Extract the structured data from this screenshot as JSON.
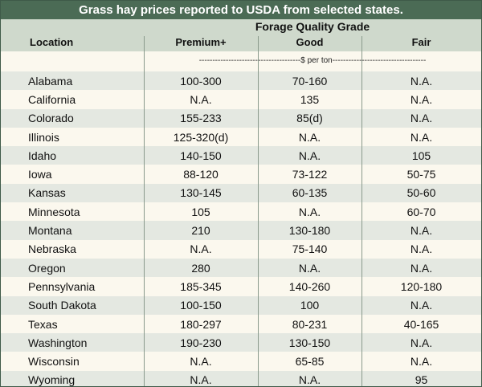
{
  "title": "Grass hay prices reported to USDA from selected states.",
  "group_header": "Forage Quality Grade",
  "columns": {
    "location": "Location",
    "premium": "Premium+",
    "good": "Good",
    "fair": "Fair"
  },
  "units_line": "--------------------------------------$ per ton-----------------------------------",
  "rows": [
    {
      "location": "Alabama",
      "premium": "100-300",
      "good": "70-160",
      "fair": "N.A."
    },
    {
      "location": "California",
      "premium": "N.A.",
      "good": "135",
      "fair": "N.A."
    },
    {
      "location": "Colorado",
      "premium": "155-233",
      "good": "85(d)",
      "fair": "N.A."
    },
    {
      "location": "Illinois",
      "premium": "125-320(d)",
      "good": "N.A.",
      "fair": "N.A."
    },
    {
      "location": "Idaho",
      "premium": "140-150",
      "good": "N.A.",
      "fair": "105"
    },
    {
      "location": "Iowa",
      "premium": "88-120",
      "good": "73-122",
      "fair": "50-75"
    },
    {
      "location": "Kansas",
      "premium": "130-145",
      "good": "60-135",
      "fair": "50-60"
    },
    {
      "location": "Minnesota",
      "premium": "105",
      "good": "N.A.",
      "fair": "60-70"
    },
    {
      "location": "Montana",
      "premium": "210",
      "good": "130-180",
      "fair": "N.A."
    },
    {
      "location": "Nebraska",
      "premium": "N.A.",
      "good": "75-140",
      "fair": "N.A."
    },
    {
      "location": "Oregon",
      "premium": "280",
      "good": "N.A.",
      "fair": "N.A."
    },
    {
      "location": "Pennsylvania",
      "premium": "185-345",
      "good": "140-260",
      "fair": "120-180"
    },
    {
      "location": "South Dakota",
      "premium": "100-150",
      "good": "100",
      "fair": "N.A."
    },
    {
      "location": "Texas",
      "premium": "180-297",
      "good": "80-231",
      "fair": "40-165"
    },
    {
      "location": "Washington",
      "premium": "190-230",
      "good": "130-150",
      "fair": "N.A."
    },
    {
      "location": "Wisconsin",
      "premium": "N.A.",
      "good": "65-85",
      "fair": "N.A."
    },
    {
      "location": "Wyoming",
      "premium": "N.A.",
      "good": "N.A.",
      "fair": "95"
    }
  ],
  "colors": {
    "title_bg": "#4b6b55",
    "header_bg": "#cfd9cc",
    "row_shade": "#e4e8e1",
    "row_plain": "#fbf8ee"
  }
}
